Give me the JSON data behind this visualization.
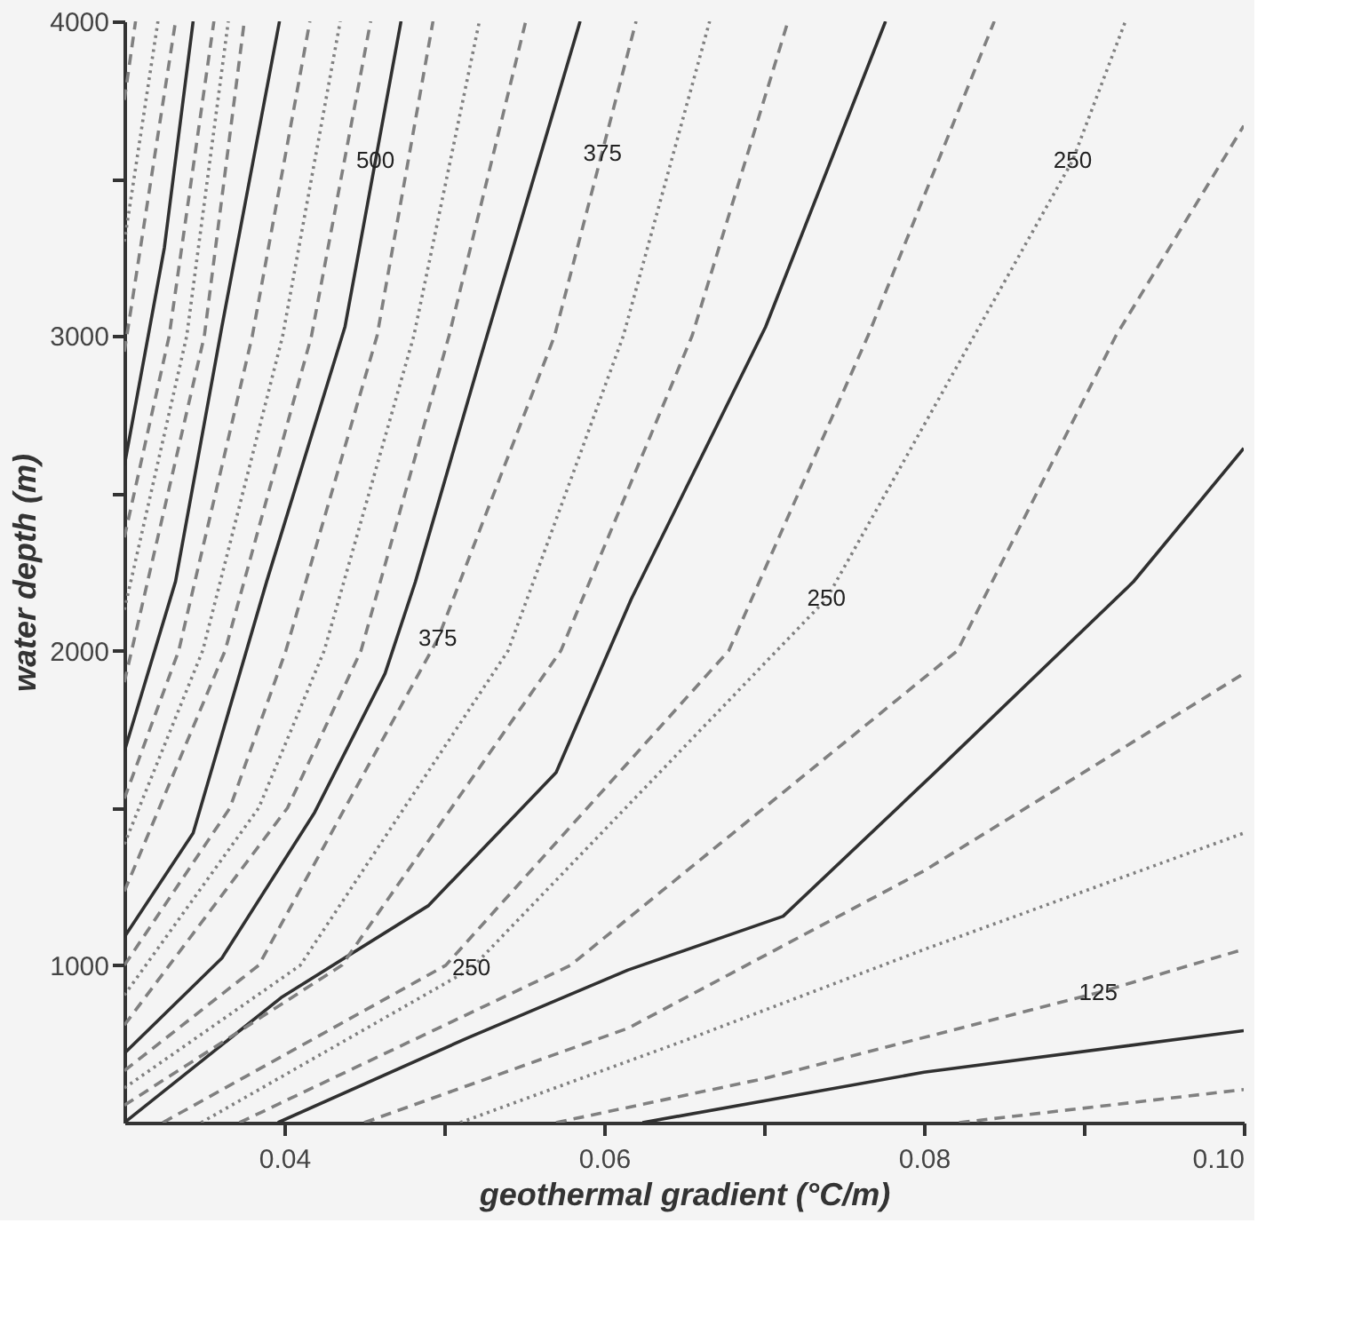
{
  "chart_data": {
    "type": "line",
    "xlabel": "geothermal gradient (°C/m)",
    "ylabel": "water depth (m)",
    "xlim": [
      0.03,
      0.1
    ],
    "ylim": [
      500,
      4000
    ],
    "xticks": [
      0.04,
      {
        "value": 0.05,
        "label": null
      },
      0.06,
      {
        "value": 0.07,
        "label": null
      },
      0.08,
      {
        "value": 0.09,
        "label": null
      },
      {
        "value": 0.1,
        "label": "0.10"
      }
    ],
    "yticks": [
      1000,
      {
        "value": 1500,
        "label": null
      },
      2000,
      {
        "value": 2500,
        "label": null
      },
      3000,
      {
        "value": 3500,
        "label": null
      },
      4000
    ],
    "grid": false,
    "legend": false,
    "marker": "none",
    "series": [
      {
        "color": "#303030",
        "line_style": "solid",
        "x": [
          0.03,
          0.0325,
          0.0343
        ],
        "values": [
          2588,
          3280,
          4000
        ]
      },
      {
        "color": "#303030",
        "line_style": "solid",
        "x": [
          0.03,
          0.0332,
          0.0361,
          0.0397
        ],
        "values": [
          1680,
          2220,
          3030,
          4000
        ]
      },
      {
        "color": "#303030",
        "line_style": "solid",
        "x": [
          0.03,
          0.0343,
          0.0389,
          0.0438,
          0.0473
        ],
        "values": [
          1090,
          1420,
          2220,
          3030,
          4000
        ]
      },
      {
        "color": "#303030",
        "line_style": "solid",
        "x": [
          0.03,
          0.0361,
          0.0419,
          0.0463,
          0.0482,
          0.0522,
          0.0585
        ],
        "values": [
          720,
          1023,
          1486,
          1927,
          2219,
          2919,
          4000
        ]
      },
      {
        "color": "#303030",
        "line_style": "solid",
        "x": [
          0.03,
          0.0398,
          0.049,
          0.057,
          0.0617,
          0.0701,
          0.0776
        ],
        "values": [
          500,
          897,
          1189,
          1613,
          2164,
          3029,
          4000
        ]
      },
      {
        "color": "#303030",
        "line_style": "solid",
        "x": [
          0.0396,
          0.0515,
          0.0615,
          0.0712,
          0.0807,
          0.0931,
          0.1
        ],
        "values": [
          500,
          770,
          985,
          1156,
          1613,
          2219,
          2643
        ]
      },
      {
        "color": "#303030",
        "line_style": "solid",
        "x": [
          0.0624,
          0.08,
          0.1
        ],
        "values": [
          500,
          660,
          792
        ]
      },
      {
        "color": "#808080",
        "line_style": "dashed",
        "x": [
          0.03,
          0.0307
        ],
        "values": [
          3750,
          4000
        ]
      },
      {
        "color": "#808080",
        "line_style": "dotted",
        "x": [
          0.03,
          0.0321
        ],
        "values": [
          3300,
          4000
        ]
      },
      {
        "color": "#808080",
        "line_style": "dashed",
        "x": [
          0.03,
          0.0332
        ],
        "values": [
          2950,
          4000
        ]
      },
      {
        "color": "#808080",
        "line_style": "dashed",
        "x": [
          0.03,
          0.0328,
          0.0356
        ],
        "values": [
          2360,
          3000,
          4000
        ]
      },
      {
        "color": "#808080",
        "line_style": "dotted",
        "x": [
          0.03,
          0.0339,
          0.0365
        ],
        "values": [
          2130,
          3000,
          4000
        ]
      },
      {
        "color": "#808080",
        "line_style": "dashed",
        "x": [
          0.03,
          0.035,
          0.0375
        ],
        "values": [
          1900,
          3000,
          4000
        ]
      },
      {
        "color": "#808080",
        "line_style": "dashed",
        "x": [
          0.03,
          0.0334,
          0.038,
          0.0416
        ],
        "values": [
          1530,
          2000,
          3000,
          4000
        ]
      },
      {
        "color": "#808080",
        "line_style": "dotted",
        "x": [
          0.03,
          0.0349,
          0.0399,
          0.0435
        ],
        "values": [
          1385,
          2000,
          3000,
          4000
        ]
      },
      {
        "color": "#808080",
        "line_style": "dashed",
        "x": [
          0.03,
          0.0363,
          0.0417,
          0.0454
        ],
        "values": [
          1235,
          2000,
          3000,
          4000
        ]
      },
      {
        "color": "#808080",
        "line_style": "dashed",
        "x": [
          0.03,
          0.0366,
          0.0401,
          0.0458,
          0.0493
        ],
        "values": [
          1000,
          1500,
          2000,
          3000,
          4000
        ]
      },
      {
        "color": "#808080",
        "line_style": "dotted",
        "x": [
          0.03,
          0.0384,
          0.0425,
          0.0481,
          0.0522
        ],
        "values": [
          905,
          1500,
          2000,
          3000,
          4000
        ]
      },
      {
        "color": "#808080",
        "line_style": "dashed",
        "x": [
          0.03,
          0.0402,
          0.0448,
          0.0503,
          0.0551
        ],
        "values": [
          810,
          1500,
          2000,
          3000,
          4000
        ]
      },
      {
        "color": "#808080",
        "line_style": "dashed",
        "x": [
          0.03,
          0.0384,
          0.0496,
          0.0569,
          0.062
        ],
        "values": [
          665,
          1000,
          2037,
          3000,
          4000
        ]
      },
      {
        "color": "#808080",
        "line_style": "dotted",
        "x": [
          0.03,
          0.041,
          0.054,
          0.0612,
          0.0666
        ],
        "values": [
          610,
          1000,
          2000,
          3000,
          4000
        ]
      },
      {
        "color": "#808080",
        "line_style": "dashed",
        "x": [
          0.03,
          0.0436,
          0.0573,
          0.0655,
          0.0715
        ],
        "values": [
          555,
          1000,
          2000,
          3000,
          4000
        ]
      },
      {
        "color": "#808080",
        "line_style": "dashed",
        "x": [
          0.0324,
          0.0501,
          0.0678,
          0.0765,
          0.0844
        ],
        "values": [
          500,
          1000,
          2000,
          3000,
          4000
        ]
      },
      {
        "color": "#808080",
        "line_style": "dotted",
        "x": [
          0.0348,
          0.0517,
          0.0739,
          0.0893,
          0.0926
        ],
        "values": [
          500,
          990,
          2164,
          3558,
          4000
        ]
      },
      {
        "color": "#808080",
        "line_style": "dashed",
        "x": [
          0.0372,
          0.0579,
          0.0821,
          0.092,
          0.1
        ],
        "values": [
          500,
          1000,
          2000,
          3000,
          3668
        ]
      },
      {
        "color": "#808080",
        "line_style": "dashed",
        "x": [
          0.045,
          0.0615,
          0.08,
          0.1
        ],
        "values": [
          500,
          800,
          1300,
          1927
        ]
      },
      {
        "color": "#808080",
        "line_style": "dotted",
        "x": [
          0.051,
          0.065,
          0.08,
          0.1
        ],
        "values": [
          500,
          760,
          1050,
          1420
        ]
      },
      {
        "color": "#808080",
        "line_style": "dashed",
        "x": [
          0.057,
          0.07,
          0.0909,
          0.1
        ],
        "values": [
          500,
          640,
          913,
          1051
        ]
      },
      {
        "color": "#808080",
        "line_style": "dashed",
        "x": [
          0.0822,
          0.1
        ],
        "values": [
          500,
          605
        ]
      }
    ],
    "annotations": [
      {
        "text": "500",
        "x": 0.0457,
        "y": 3558
      },
      {
        "text": "375",
        "x": 0.0599,
        "y": 3580
      },
      {
        "text": "375",
        "x": 0.0496,
        "y": 2037
      },
      {
        "text": "250",
        "x": 0.0517,
        "y": 990
      },
      {
        "text": "250",
        "x": 0.0739,
        "y": 2164
      },
      {
        "text": "250",
        "x": 0.0893,
        "y": 3558
      },
      {
        "text": "125",
        "x": 0.0909,
        "y": 913
      }
    ]
  }
}
